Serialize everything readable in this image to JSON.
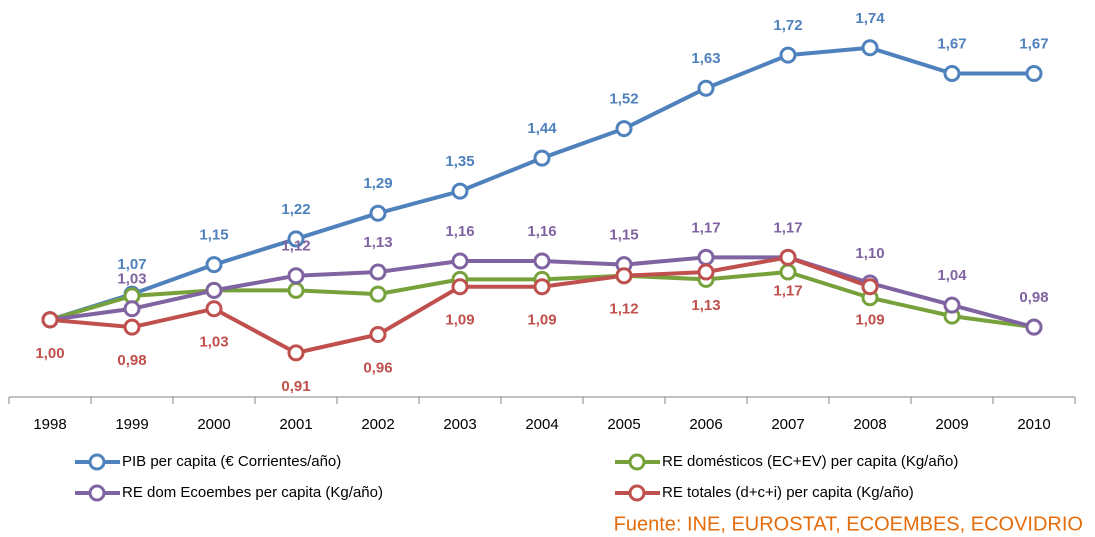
{
  "chart_data": {
    "type": "line",
    "categories": [
      "1998",
      "1999",
      "2000",
      "2001",
      "2002",
      "2003",
      "2004",
      "2005",
      "2006",
      "2007",
      "2008",
      "2009",
      "2010"
    ],
    "ylim": [
      0.79,
      1.87
    ],
    "series": [
      {
        "name": "PIB per capita (€ Corrientes/año)",
        "color": "#4f81bd",
        "label_pos": "above",
        "values": [
          1.0,
          1.07,
          1.15,
          1.22,
          1.29,
          1.35,
          1.44,
          1.52,
          1.63,
          1.72,
          1.74,
          1.67,
          1.67
        ],
        "value_labels": [
          null,
          "1,07",
          "1,15",
          "1,22",
          "1,29",
          "1,35",
          "1,44",
          "1,52",
          "1,63",
          "1,72",
          "1,74",
          "1,67",
          "1,67"
        ]
      },
      {
        "name": "RE domésticos (EC+EV) per capita (Kg/año)",
        "color": "#77a13b",
        "values": [
          1.0,
          1.065,
          1.08,
          1.08,
          1.07,
          1.11,
          1.11,
          1.12,
          1.11,
          1.13,
          1.06,
          1.01,
          0.98
        ]
      },
      {
        "name": "RE dom Ecoembes per capita (Kg/año)",
        "color": "#8064a2",
        "label_pos": "above",
        "values": [
          1.0,
          1.03,
          1.08,
          1.12,
          1.13,
          1.16,
          1.16,
          1.15,
          1.17,
          1.17,
          1.1,
          1.04,
          0.98
        ],
        "value_labels": [
          null,
          "1,03",
          null,
          "1,12",
          "1,13",
          "1,16",
          "1,16",
          "1,15",
          "1,17",
          "1,17",
          "1,10",
          "1,04",
          "0,98"
        ]
      },
      {
        "name": "RE totales (d+c+i) per capita (Kg/año)",
        "color": "#c0504d",
        "label_pos": "below",
        "values": [
          1.0,
          0.98,
          1.03,
          0.91,
          0.96,
          1.09,
          1.09,
          1.12,
          1.13,
          1.17,
          1.09,
          null,
          null
        ],
        "value_labels": [
          "1,00",
          "0,98",
          "1,03",
          "0,91",
          "0,96",
          "1,09",
          "1,09",
          "1,12",
          "1,13",
          "1,17",
          "1,09",
          null,
          null
        ]
      }
    ],
    "source": "Fuente: INE, EUROSTAT, ECOEMBES, ECOVIDRIO"
  }
}
